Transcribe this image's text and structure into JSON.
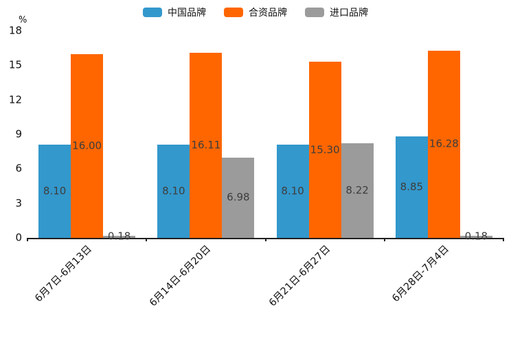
{
  "chart_data": {
    "type": "bar",
    "title": "",
    "unit": "%",
    "categories": [
      "6月7日-6月13日",
      "6月14日-6月20日",
      "6月21日-6月27日",
      "6月28日-7月4日"
    ],
    "series": [
      {
        "name": "中国品牌",
        "color": "#3398cc",
        "values": [
          8.1,
          8.1,
          8.1,
          8.85
        ]
      },
      {
        "name": "合资品牌",
        "color": "#ff6600",
        "values": [
          16.0,
          16.11,
          15.3,
          16.28
        ]
      },
      {
        "name": "进口品牌",
        "color": "#9b9b9b",
        "values": [
          0.18,
          6.98,
          8.22,
          0.18
        ]
      }
    ],
    "value_decimals": 2,
    "ylim": [
      0,
      18
    ],
    "yticks": [
      0,
      3,
      6,
      9,
      12,
      15,
      18
    ],
    "grid": "off",
    "legend_position": "top-center",
    "value_label_color": "#3d3d3d",
    "axis_color": "#1f1f1f"
  }
}
